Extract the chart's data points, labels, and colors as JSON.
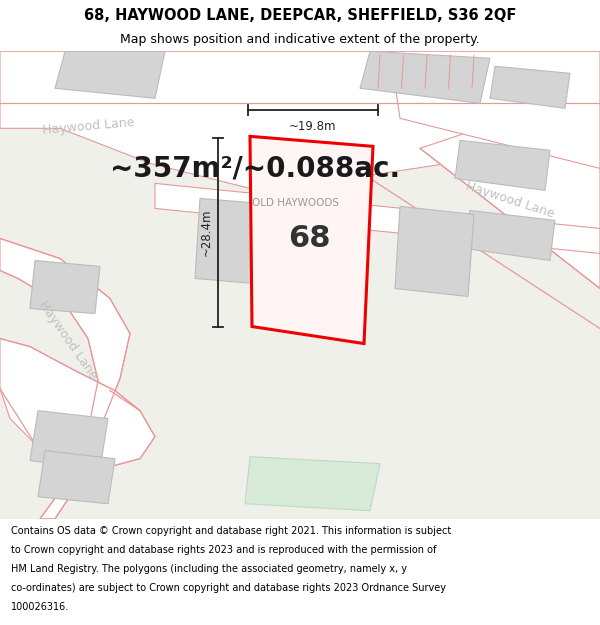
{
  "title_line1": "68, HAYWOOD LANE, DEEPCAR, SHEFFIELD, S36 2QF",
  "title_line2": "Map shows position and indicative extent of the property.",
  "area_text": "~357m²/~0.088ac.",
  "label_old_haywoods": "OLD HAYWOODS",
  "label_haywood_lane_top_left": "Haywood Lane",
  "label_haywood_lane_right": "Haywood Lane",
  "label_haywood_lane_bottom_left": "Haywood Lane",
  "number_label": "68",
  "dim_height": "~28.4m",
  "dim_width": "~19.8m",
  "footer_lines": [
    "Contains OS data © Crown copyright and database right 2021. This information is subject",
    "to Crown copyright and database rights 2023 and is reproduced with the permission of",
    "HM Land Registry. The polygons (including the associated geometry, namely x, y",
    "co-ordinates) are subject to Crown copyright and database rights 2023 Ordnance Survey",
    "100026316."
  ],
  "map_bg": "#f0f0eb",
  "road_color": "#ffffff",
  "building_fill": "#d4d4d4",
  "building_edge": "#bbbbbb",
  "boundary_color": "#e89898",
  "property_color": "#ee0000",
  "dim_color": "#222222",
  "text_white": "#ffffff",
  "label_color": "#c0c0c0",
  "area_color": "#1a1a1a",
  "title_fontsize": 10.5,
  "subtitle_fontsize": 9,
  "area_fontsize": 20,
  "label_fontsize": 9,
  "number_fontsize": 22,
  "dim_fontsize": 8.5,
  "footer_fontsize": 7.0
}
